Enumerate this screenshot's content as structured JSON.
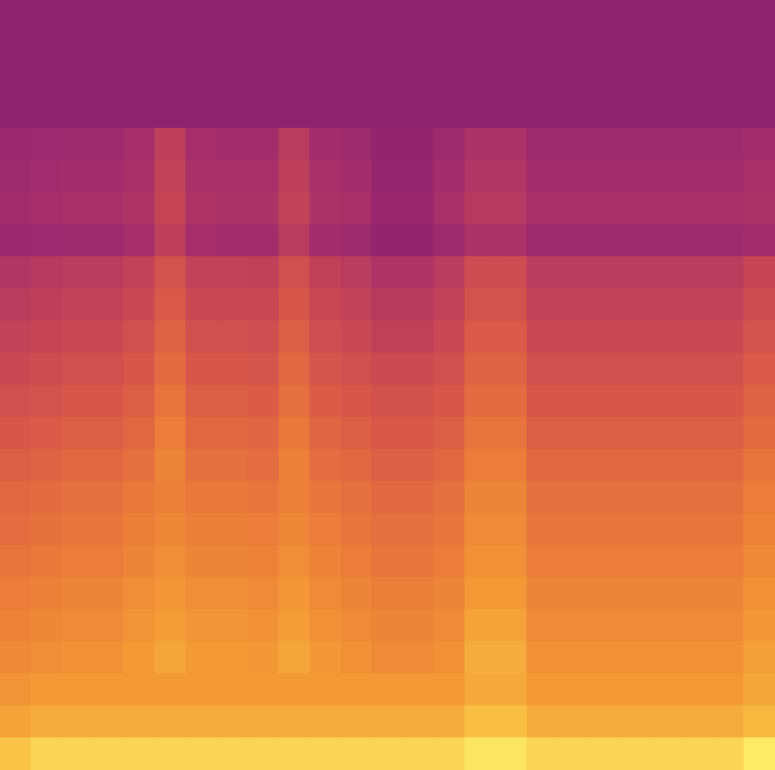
{
  "chart_data": {
    "type": "heatmap",
    "tick_labels": false,
    "zlim": [
      0,
      100
    ],
    "cells": [
      [
        8,
        8,
        8,
        8,
        8,
        8,
        8,
        8,
        8,
        8,
        8,
        8,
        8,
        8,
        8,
        8,
        8,
        8,
        8,
        8,
        8,
        8,
        8,
        8,
        8
      ],
      [
        8,
        8,
        8,
        8,
        8,
        8,
        8,
        8,
        8,
        8,
        8,
        8,
        8,
        8,
        8,
        8,
        8,
        8,
        8,
        8,
        8,
        8,
        8,
        8,
        8
      ],
      [
        8,
        8,
        8,
        8,
        8,
        8,
        8,
        8,
        8,
        8,
        8,
        8,
        8,
        8,
        8,
        8,
        8,
        8,
        8,
        8,
        8,
        8,
        8,
        8,
        8
      ],
      [
        8,
        8,
        8,
        8,
        8,
        8,
        8,
        8,
        8,
        8,
        8,
        8,
        8,
        8,
        8,
        8,
        8,
        8,
        8,
        8,
        8,
        8,
        8,
        8,
        8
      ],
      [
        18,
        19,
        20,
        20,
        23,
        34,
        23,
        22,
        22,
        32,
        22,
        20,
        12,
        12,
        20,
        26,
        26,
        20,
        20,
        20,
        20,
        20,
        20,
        20,
        22
      ],
      [
        20,
        21,
        22,
        22,
        25,
        36,
        25,
        24,
        24,
        34,
        24,
        22,
        14,
        14,
        22,
        28,
        28,
        22,
        22,
        22,
        22,
        22,
        22,
        22,
        24
      ],
      [
        22,
        23,
        24,
        24,
        27,
        38,
        27,
        26,
        26,
        36,
        26,
        24,
        16,
        16,
        24,
        30,
        30,
        24,
        24,
        24,
        24,
        24,
        24,
        24,
        26
      ],
      [
        18,
        19,
        20,
        20,
        23,
        34,
        23,
        22,
        22,
        32,
        22,
        20,
        12,
        12,
        20,
        26,
        26,
        20,
        20,
        20,
        20,
        20,
        20,
        20,
        22
      ],
      [
        28,
        30,
        32,
        32,
        36,
        46,
        36,
        36,
        35,
        44,
        35,
        32,
        27,
        27,
        32,
        42,
        42,
        32,
        32,
        32,
        32,
        32,
        32,
        32,
        38
      ],
      [
        32,
        34,
        36,
        36,
        40,
        50,
        40,
        40,
        39,
        48,
        39,
        36,
        31,
        31,
        36,
        46,
        46,
        36,
        36,
        36,
        36,
        36,
        36,
        36,
        42
      ],
      [
        36,
        38,
        40,
        40,
        44,
        54,
        44,
        44,
        43,
        52,
        43,
        40,
        35,
        35,
        40,
        50,
        50,
        40,
        40,
        40,
        40,
        40,
        40,
        40,
        46
      ],
      [
        40,
        42,
        44,
        44,
        48,
        58,
        48,
        48,
        47,
        56,
        47,
        44,
        41,
        41,
        44,
        54,
        54,
        44,
        44,
        44,
        44,
        44,
        44,
        44,
        50
      ],
      [
        44,
        46,
        48,
        48,
        52,
        62,
        52,
        52,
        51,
        60,
        51,
        48,
        45,
        45,
        48,
        58,
        58,
        48,
        48,
        48,
        48,
        48,
        48,
        48,
        54
      ],
      [
        48,
        50,
        52,
        52,
        56,
        66,
        56,
        56,
        55,
        64,
        55,
        52,
        49,
        49,
        52,
        62,
        62,
        52,
        52,
        52,
        52,
        52,
        52,
        52,
        58
      ],
      [
        52,
        54,
        56,
        56,
        60,
        70,
        60,
        60,
        59,
        68,
        59,
        56,
        53,
        53,
        56,
        66,
        66,
        56,
        56,
        56,
        56,
        56,
        56,
        56,
        62
      ],
      [
        56,
        58,
        60,
        60,
        64,
        68,
        64,
        64,
        63,
        68,
        63,
        60,
        57,
        57,
        60,
        70,
        70,
        60,
        60,
        60,
        60,
        60,
        60,
        60,
        66
      ],
      [
        59,
        61,
        63,
        63,
        67,
        71,
        67,
        67,
        66,
        71,
        66,
        63,
        60,
        60,
        63,
        73,
        73,
        63,
        63,
        63,
        63,
        63,
        63,
        63,
        69
      ],
      [
        62,
        64,
        66,
        66,
        70,
        74,
        70,
        70,
        69,
        74,
        69,
        66,
        63,
        63,
        66,
        76,
        76,
        66,
        66,
        66,
        66,
        66,
        66,
        66,
        72
      ],
      [
        66,
        68,
        70,
        70,
        74,
        78,
        74,
        74,
        73,
        78,
        73,
        70,
        67,
        67,
        70,
        80,
        80,
        70,
        70,
        70,
        70,
        70,
        70,
        70,
        76
      ],
      [
        69,
        71,
        73,
        73,
        77,
        81,
        77,
        77,
        76,
        81,
        76,
        73,
        70,
        70,
        73,
        83,
        83,
        73,
        73,
        73,
        73,
        73,
        73,
        73,
        79
      ],
      [
        72,
        74,
        76,
        76,
        80,
        84,
        80,
        80,
        79,
        84,
        79,
        76,
        73,
        73,
        76,
        86,
        86,
        76,
        76,
        76,
        76,
        76,
        76,
        76,
        82
      ],
      [
        77,
        80,
        80,
        80,
        80,
        80,
        80,
        80,
        80,
        80,
        80,
        80,
        80,
        80,
        80,
        85,
        85,
        80,
        80,
        80,
        80,
        80,
        80,
        80,
        84
      ],
      [
        83,
        86,
        86,
        86,
        86,
        86,
        86,
        86,
        86,
        86,
        86,
        86,
        86,
        86,
        86,
        91,
        91,
        86,
        86,
        86,
        86,
        86,
        86,
        86,
        90
      ],
      [
        92,
        95,
        95,
        95,
        95,
        95,
        95,
        95,
        95,
        95,
        95,
        95,
        95,
        95,
        95,
        98,
        98,
        95,
        95,
        95,
        95,
        95,
        95,
        95,
        99
      ]
    ]
  }
}
